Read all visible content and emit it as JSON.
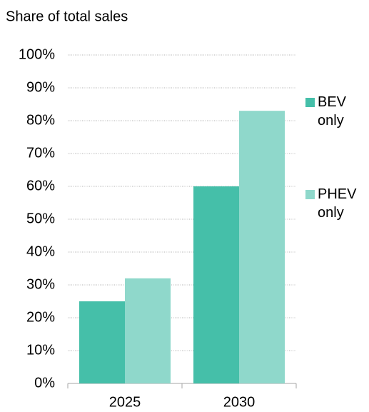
{
  "chart_data": {
    "type": "bar",
    "y_label": "Share of total sales",
    "categories": [
      "2025",
      "2030"
    ],
    "series": [
      {
        "name": "BEV only",
        "color": "#45bfa9",
        "values": [
          25,
          60
        ]
      },
      {
        "name": "PHEV only",
        "color": "#8fd8cb",
        "values": [
          32,
          83
        ]
      }
    ],
    "ylim": [
      0,
      100
    ],
    "yticks": [
      {
        "value": 0,
        "label": "0%"
      },
      {
        "value": 10,
        "label": "10%"
      },
      {
        "value": 20,
        "label": "20%"
      },
      {
        "value": 30,
        "label": "30%"
      },
      {
        "value": 40,
        "label": "40%"
      },
      {
        "value": 50,
        "label": "50%"
      },
      {
        "value": 60,
        "label": "60%"
      },
      {
        "value": 70,
        "label": "70%"
      },
      {
        "value": 80,
        "label": "80%"
      },
      {
        "value": 90,
        "label": "90%"
      },
      {
        "value": 100,
        "label": "100%"
      }
    ],
    "grid": true,
    "legend": "right"
  }
}
